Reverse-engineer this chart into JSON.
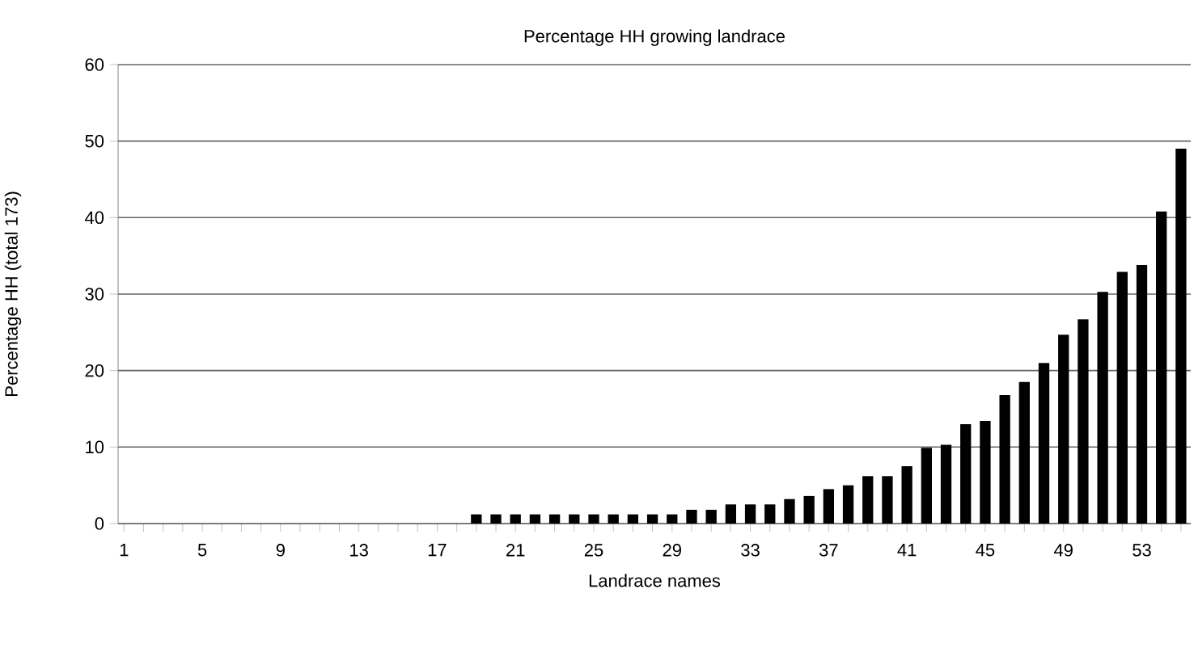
{
  "chart_data": {
    "type": "bar",
    "title": "Percentage HH growing landrace",
    "xlabel": "Landrace names",
    "ylabel": "Percentage HH (total 173)",
    "categories": [
      "1",
      null,
      null,
      null,
      "5",
      null,
      null,
      null,
      "9",
      null,
      null,
      null,
      "13",
      null,
      null,
      null,
      "17",
      null,
      null,
      null,
      "21",
      null,
      null,
      null,
      "25",
      null,
      null,
      null,
      "29",
      null,
      null,
      null,
      "33",
      null,
      null,
      null,
      "37",
      null,
      null,
      null,
      "41",
      null,
      null,
      null,
      "45",
      null,
      null,
      null,
      "49",
      null,
      null,
      null,
      "53",
      null,
      null
    ],
    "values": [
      0,
      0,
      0,
      0,
      0,
      0,
      0,
      0,
      0,
      0,
      0,
      0,
      0,
      0,
      0,
      0,
      0,
      0,
      1.2,
      1.2,
      1.2,
      1.2,
      1.2,
      1.2,
      1.2,
      1.2,
      1.2,
      1.2,
      1.2,
      1.8,
      1.8,
      2.5,
      2.5,
      2.5,
      3.2,
      3.6,
      4.5,
      5.0,
      6.2,
      6.2,
      7.5,
      9.9,
      10.3,
      13.0,
      13.4,
      16.8,
      18.5,
      21.0,
      24.7,
      26.7,
      30.3,
      32.9,
      33.8,
      40.8,
      49.0
    ],
    "color": "#000000",
    "ylim": [
      0,
      60
    ],
    "yticks": [
      0,
      10,
      20,
      30,
      40,
      50,
      60
    ],
    "grid": "y"
  }
}
